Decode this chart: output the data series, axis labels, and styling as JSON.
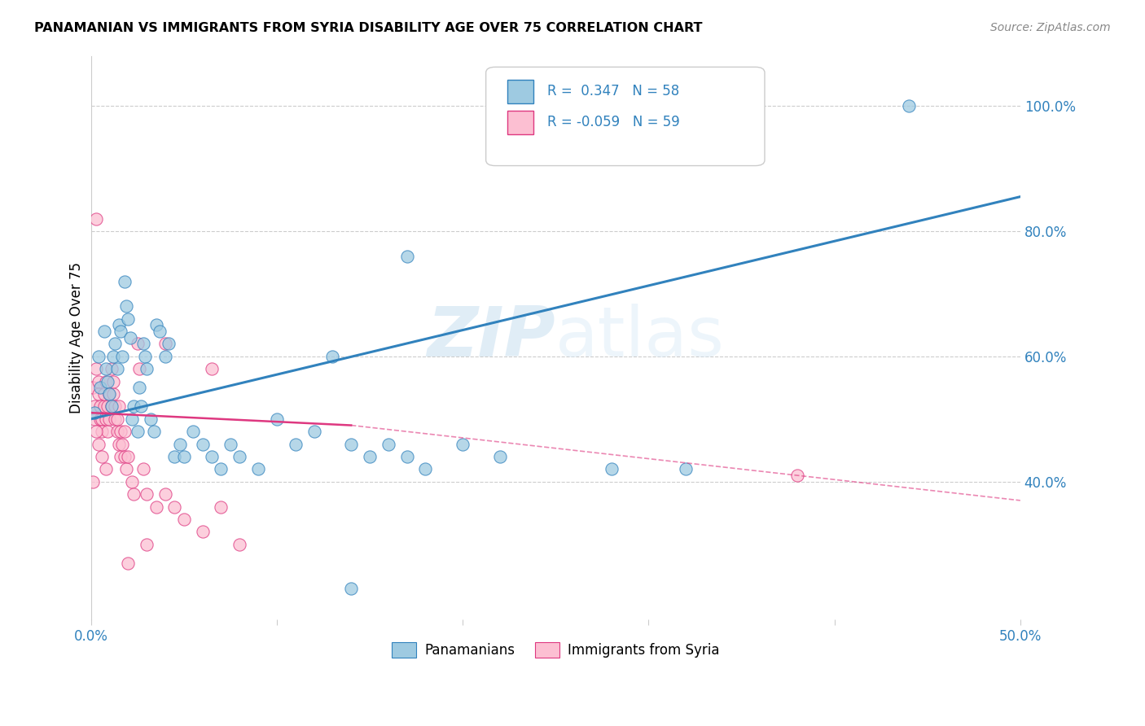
{
  "title": "PANAMANIAN VS IMMIGRANTS FROM SYRIA DISABILITY AGE OVER 75 CORRELATION CHART",
  "source": "Source: ZipAtlas.com",
  "ylabel": "Disability Age Over 75",
  "ylabel_right_ticks": [
    "40.0%",
    "60.0%",
    "80.0%",
    "100.0%"
  ],
  "ylabel_right_vals": [
    0.4,
    0.6,
    0.8,
    1.0
  ],
  "xlim": [
    0.0,
    0.5
  ],
  "ylim": [
    0.18,
    1.08
  ],
  "legend1_label": "Panamanians",
  "legend2_label": "Immigrants from Syria",
  "R1": 0.347,
  "N1": 58,
  "R2": -0.059,
  "N2": 59,
  "color_blue": "#9ecae1",
  "color_pink": "#fcbfd2",
  "color_blue_line": "#3182bd",
  "color_pink_line": "#de3880",
  "watermark_zip": "ZIP",
  "watermark_atlas": "atlas",
  "blue_dots": [
    [
      0.002,
      0.51
    ],
    [
      0.004,
      0.6
    ],
    [
      0.005,
      0.55
    ],
    [
      0.007,
      0.64
    ],
    [
      0.008,
      0.58
    ],
    [
      0.009,
      0.56
    ],
    [
      0.01,
      0.54
    ],
    [
      0.011,
      0.52
    ],
    [
      0.012,
      0.6
    ],
    [
      0.013,
      0.62
    ],
    [
      0.014,
      0.58
    ],
    [
      0.015,
      0.65
    ],
    [
      0.016,
      0.64
    ],
    [
      0.017,
      0.6
    ],
    [
      0.018,
      0.72
    ],
    [
      0.019,
      0.68
    ],
    [
      0.02,
      0.66
    ],
    [
      0.021,
      0.63
    ],
    [
      0.022,
      0.5
    ],
    [
      0.023,
      0.52
    ],
    [
      0.025,
      0.48
    ],
    [
      0.026,
      0.55
    ],
    [
      0.027,
      0.52
    ],
    [
      0.028,
      0.62
    ],
    [
      0.029,
      0.6
    ],
    [
      0.03,
      0.58
    ],
    [
      0.032,
      0.5
    ],
    [
      0.034,
      0.48
    ],
    [
      0.035,
      0.65
    ],
    [
      0.037,
      0.64
    ],
    [
      0.04,
      0.6
    ],
    [
      0.042,
      0.62
    ],
    [
      0.045,
      0.44
    ],
    [
      0.048,
      0.46
    ],
    [
      0.05,
      0.44
    ],
    [
      0.055,
      0.48
    ],
    [
      0.06,
      0.46
    ],
    [
      0.065,
      0.44
    ],
    [
      0.07,
      0.42
    ],
    [
      0.075,
      0.46
    ],
    [
      0.08,
      0.44
    ],
    [
      0.09,
      0.42
    ],
    [
      0.1,
      0.5
    ],
    [
      0.11,
      0.46
    ],
    [
      0.12,
      0.48
    ],
    [
      0.13,
      0.6
    ],
    [
      0.14,
      0.46
    ],
    [
      0.15,
      0.44
    ],
    [
      0.16,
      0.46
    ],
    [
      0.17,
      0.44
    ],
    [
      0.18,
      0.42
    ],
    [
      0.2,
      0.46
    ],
    [
      0.22,
      0.44
    ],
    [
      0.28,
      0.42
    ],
    [
      0.17,
      0.76
    ],
    [
      0.32,
      0.42
    ],
    [
      0.44,
      1.0
    ],
    [
      0.14,
      0.23
    ]
  ],
  "pink_dots": [
    [
      0.001,
      0.55
    ],
    [
      0.002,
      0.5
    ],
    [
      0.002,
      0.52
    ],
    [
      0.003,
      0.82
    ],
    [
      0.003,
      0.58
    ],
    [
      0.004,
      0.56
    ],
    [
      0.004,
      0.54
    ],
    [
      0.005,
      0.5
    ],
    [
      0.005,
      0.52
    ],
    [
      0.006,
      0.5
    ],
    [
      0.006,
      0.48
    ],
    [
      0.007,
      0.52
    ],
    [
      0.007,
      0.54
    ],
    [
      0.008,
      0.56
    ],
    [
      0.008,
      0.5
    ],
    [
      0.009,
      0.52
    ],
    [
      0.009,
      0.48
    ],
    [
      0.01,
      0.5
    ],
    [
      0.01,
      0.54
    ],
    [
      0.011,
      0.58
    ],
    [
      0.011,
      0.52
    ],
    [
      0.012,
      0.54
    ],
    [
      0.012,
      0.56
    ],
    [
      0.013,
      0.5
    ],
    [
      0.013,
      0.52
    ],
    [
      0.014,
      0.48
    ],
    [
      0.014,
      0.5
    ],
    [
      0.015,
      0.46
    ],
    [
      0.015,
      0.52
    ],
    [
      0.016,
      0.48
    ],
    [
      0.016,
      0.44
    ],
    [
      0.017,
      0.46
    ],
    [
      0.018,
      0.44
    ],
    [
      0.018,
      0.48
    ],
    [
      0.019,
      0.42
    ],
    [
      0.02,
      0.44
    ],
    [
      0.022,
      0.4
    ],
    [
      0.023,
      0.38
    ],
    [
      0.025,
      0.62
    ],
    [
      0.026,
      0.58
    ],
    [
      0.028,
      0.42
    ],
    [
      0.03,
      0.38
    ],
    [
      0.035,
      0.36
    ],
    [
      0.04,
      0.38
    ],
    [
      0.04,
      0.62
    ],
    [
      0.045,
      0.36
    ],
    [
      0.05,
      0.34
    ],
    [
      0.06,
      0.32
    ],
    [
      0.065,
      0.58
    ],
    [
      0.07,
      0.36
    ],
    [
      0.08,
      0.3
    ],
    [
      0.02,
      0.27
    ],
    [
      0.03,
      0.3
    ],
    [
      0.003,
      0.48
    ],
    [
      0.004,
      0.46
    ],
    [
      0.006,
      0.44
    ],
    [
      0.008,
      0.42
    ],
    [
      0.38,
      0.41
    ],
    [
      0.001,
      0.4
    ]
  ],
  "blue_line": [
    [
      0.0,
      0.5
    ],
    [
      0.5,
      0.855
    ]
  ],
  "pink_line_solid": [
    [
      0.0,
      0.51
    ],
    [
      0.14,
      0.49
    ]
  ],
  "pink_line_dashed": [
    [
      0.14,
      0.49
    ],
    [
      0.5,
      0.37
    ]
  ]
}
